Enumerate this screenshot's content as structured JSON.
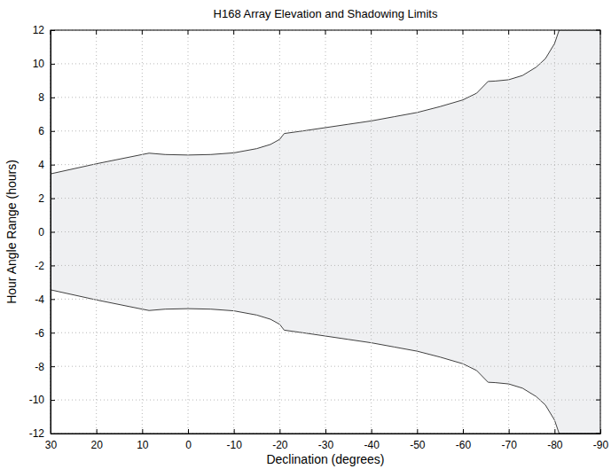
{
  "chart_data": {
    "type": "area",
    "title": "H168 Array Elevation and Shadowing Limits",
    "x_label": "Declination (degrees)",
    "y_label": "Hour Angle Range (hours)",
    "color": "#eff0f2",
    "x": [
      30,
      20,
      10,
      8.5,
      5,
      0,
      -5,
      -10,
      -15,
      -18,
      -20,
      -21,
      -25,
      -30,
      -35,
      -40,
      -45,
      -50,
      -55,
      -60,
      -63,
      -65.5,
      -67,
      -70,
      -73,
      -76,
      -78,
      -80,
      -81,
      -90
    ],
    "series": [
      {
        "color": "#404040",
        "values": [
          3.45,
          4.05,
          4.6,
          4.68,
          4.6,
          4.57,
          4.6,
          4.7,
          4.95,
          5.2,
          5.5,
          5.85,
          6.0,
          6.2,
          6.4,
          6.6,
          6.85,
          7.1,
          7.45,
          7.85,
          8.25,
          8.95,
          8.97,
          9.05,
          9.3,
          9.8,
          10.3,
          11.2,
          12,
          12
        ]
      },
      {
        "color": "#404040",
        "values": [
          -3.45,
          -4.05,
          -4.6,
          -4.68,
          -4.6,
          -4.57,
          -4.6,
          -4.7,
          -4.95,
          -5.2,
          -5.5,
          -5.85,
          -6.0,
          -6.2,
          -6.4,
          -6.6,
          -6.85,
          -7.1,
          -7.45,
          -7.85,
          -8.25,
          -8.95,
          -8.97,
          -9.05,
          -9.3,
          -9.8,
          -10.3,
          -11.2,
          -12,
          -12
        ]
      }
    ],
    "xlim": [
      30,
      -90
    ],
    "ylim": [
      -12,
      12
    ],
    "xticks": [
      30,
      20,
      10,
      0,
      -10,
      -20,
      -30,
      -40,
      -50,
      -60,
      -70,
      -80,
      -90
    ],
    "yticks": [
      -12,
      -10,
      -8,
      -6,
      -4,
      -2,
      0,
      2,
      4,
      6,
      8,
      10,
      12
    ],
    "grid": true
  }
}
